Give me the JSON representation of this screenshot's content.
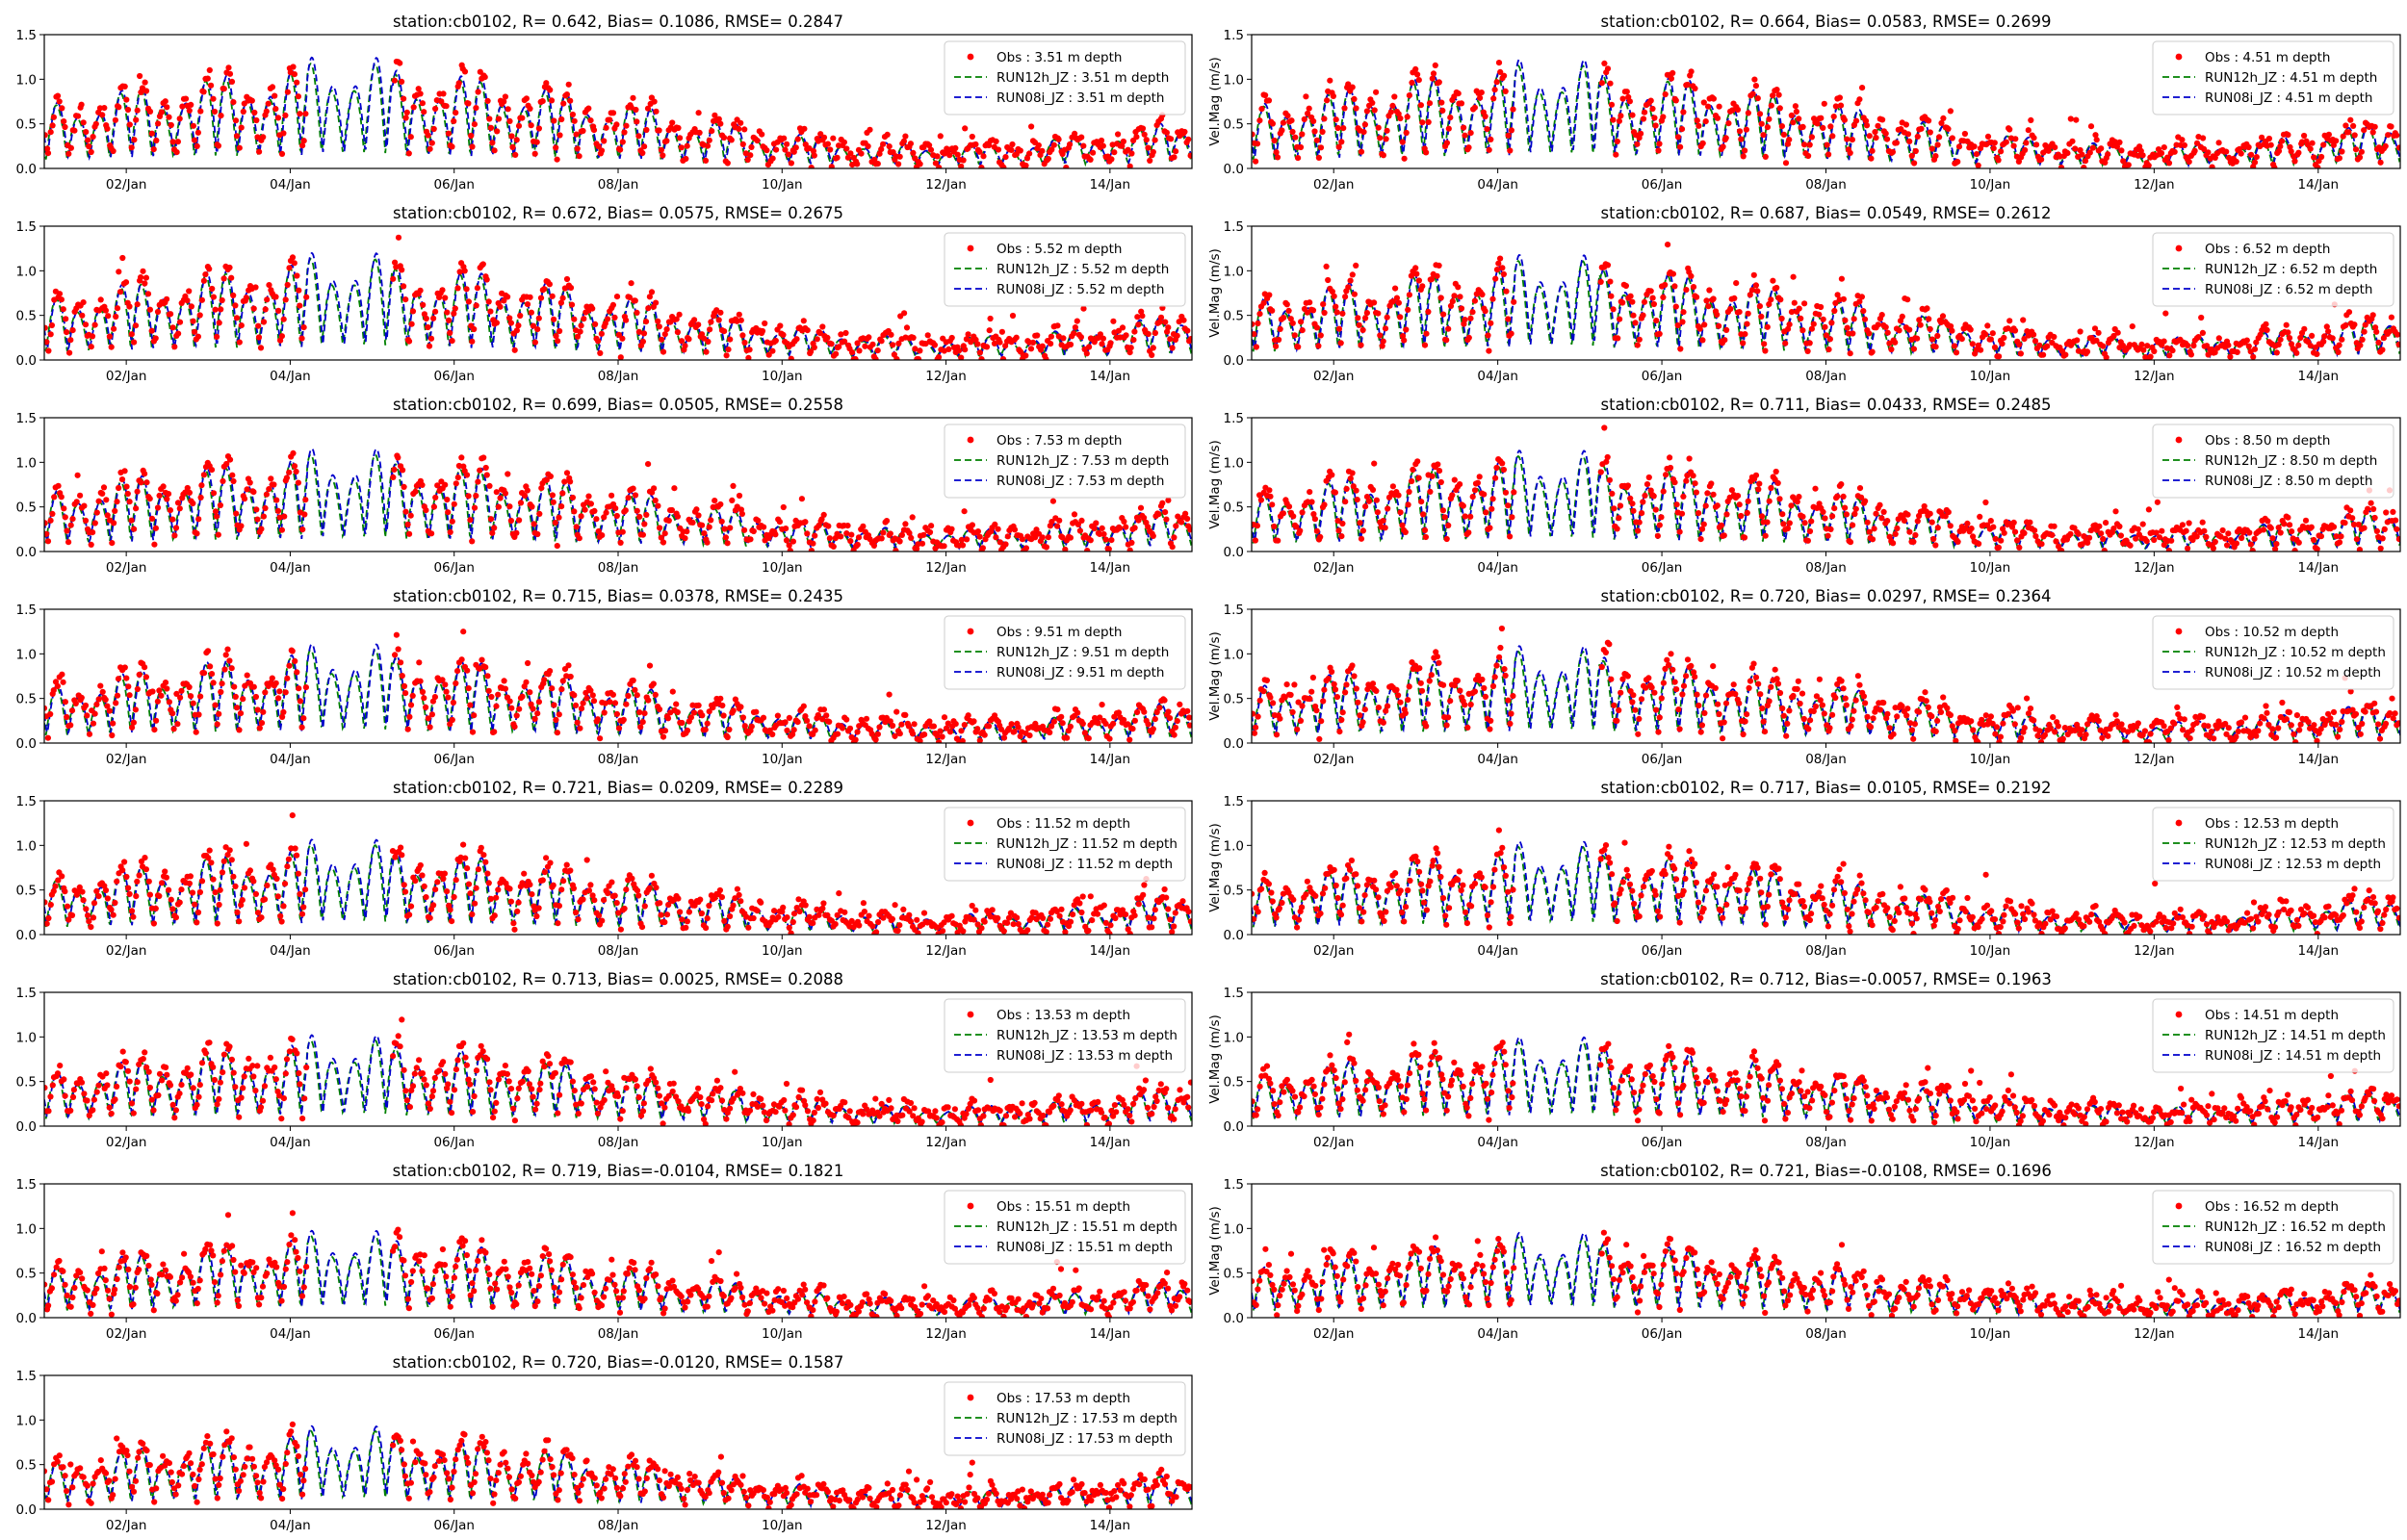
{
  "figure": {
    "x_tick_labels": [
      "02/Jan",
      "04/Jan",
      "06/Jan",
      "08/Jan",
      "10/Jan",
      "12/Jan",
      "14/Jan"
    ],
    "y_tick_labels": [
      "0.0",
      "0.5",
      "1.0",
      "1.5"
    ],
    "ylabel_right": "Vel.Mag (m/s)",
    "colors": {
      "obs": "#ff0000",
      "run12h": "#008000",
      "run08i": "#0000cc",
      "axis": "#000000"
    }
  },
  "chart_data": [
    {
      "type": "line",
      "title": "station:cb0102, R= 0.642, Bias= 0.1086, RMSE= 0.2847",
      "ylabel": "",
      "xlim": [
        1.0,
        15.0
      ],
      "ylim": [
        0,
        1.5
      ],
      "legend": "top-right",
      "series": [
        {
          "name": "Obs : 3.51 m depth",
          "style": "points"
        },
        {
          "name": "RUN12h_JZ : 3.51 m depth",
          "style": "dashed"
        },
        {
          "name": "RUN08i_JZ : 3.51 m depth",
          "style": "dashed"
        }
      ]
    },
    {
      "type": "line",
      "title": "station:cb0102, R= 0.664, Bias= 0.0583, RMSE= 0.2699",
      "ylabel": "Vel.Mag (m/s)",
      "xlim": [
        1.0,
        15.0
      ],
      "ylim": [
        0,
        1.5
      ],
      "legend": "top-right",
      "series": [
        {
          "name": "Obs : 4.51 m depth",
          "style": "points"
        },
        {
          "name": "RUN12h_JZ : 4.51 m depth",
          "style": "dashed"
        },
        {
          "name": "RUN08i_JZ : 4.51 m depth",
          "style": "dashed"
        }
      ]
    },
    {
      "type": "line",
      "title": "station:cb0102, R= 0.672, Bias= 0.0575, RMSE= 0.2675",
      "ylabel": "",
      "xlim": [
        1.0,
        15.0
      ],
      "ylim": [
        0,
        1.5
      ],
      "legend": "top-right",
      "series": [
        {
          "name": "Obs : 5.52 m depth",
          "style": "points"
        },
        {
          "name": "RUN12h_JZ : 5.52 m depth",
          "style": "dashed"
        },
        {
          "name": "RUN08i_JZ : 5.52 m depth",
          "style": "dashed"
        }
      ]
    },
    {
      "type": "line",
      "title": "station:cb0102, R= 0.687, Bias= 0.0549, RMSE= 0.2612",
      "ylabel": "Vel.Mag (m/s)",
      "xlim": [
        1.0,
        15.0
      ],
      "ylim": [
        0,
        1.5
      ],
      "legend": "top-right",
      "series": [
        {
          "name": "Obs : 6.52 m depth",
          "style": "points"
        },
        {
          "name": "RUN12h_JZ : 6.52 m depth",
          "style": "dashed"
        },
        {
          "name": "RUN08i_JZ : 6.52 m depth",
          "style": "dashed"
        }
      ]
    },
    {
      "type": "line",
      "title": "station:cb0102, R= 0.699, Bias= 0.0505, RMSE= 0.2558",
      "ylabel": "",
      "xlim": [
        1.0,
        15.0
      ],
      "ylim": [
        0,
        1.5
      ],
      "legend": "top-right",
      "series": [
        {
          "name": "Obs : 7.53 m depth",
          "style": "points"
        },
        {
          "name": "RUN12h_JZ : 7.53 m depth",
          "style": "dashed"
        },
        {
          "name": "RUN08i_JZ : 7.53 m depth",
          "style": "dashed"
        }
      ]
    },
    {
      "type": "line",
      "title": "station:cb0102, R= 0.711, Bias= 0.0433, RMSE= 0.2485",
      "ylabel": "Vel.Mag (m/s)",
      "xlim": [
        1.0,
        15.0
      ],
      "ylim": [
        0,
        1.5
      ],
      "legend": "top-right",
      "series": [
        {
          "name": "Obs : 8.50 m depth",
          "style": "points"
        },
        {
          "name": "RUN12h_JZ : 8.50 m depth",
          "style": "dashed"
        },
        {
          "name": "RUN08i_JZ : 8.50 m depth",
          "style": "dashed"
        }
      ]
    },
    {
      "type": "line",
      "title": "station:cb0102, R= 0.715, Bias= 0.0378, RMSE= 0.2435",
      "ylabel": "",
      "xlim": [
        1.0,
        15.0
      ],
      "ylim": [
        0,
        1.5
      ],
      "legend": "top-right",
      "series": [
        {
          "name": "Obs : 9.51 m depth",
          "style": "points"
        },
        {
          "name": "RUN12h_JZ : 9.51 m depth",
          "style": "dashed"
        },
        {
          "name": "RUN08i_JZ : 9.51 m depth",
          "style": "dashed"
        }
      ]
    },
    {
      "type": "line",
      "title": "station:cb0102, R= 0.720, Bias= 0.0297, RMSE= 0.2364",
      "ylabel": "Vel.Mag (m/s)",
      "xlim": [
        1.0,
        15.0
      ],
      "ylim": [
        0,
        1.5
      ],
      "legend": "top-right",
      "series": [
        {
          "name": "Obs : 10.52 m depth",
          "style": "points"
        },
        {
          "name": "RUN12h_JZ : 10.52 m depth",
          "style": "dashed"
        },
        {
          "name": "RUN08i_JZ : 10.52 m depth",
          "style": "dashed"
        }
      ]
    },
    {
      "type": "line",
      "title": "station:cb0102, R= 0.721, Bias= 0.0209, RMSE= 0.2289",
      "ylabel": "",
      "xlim": [
        1.0,
        15.0
      ],
      "ylim": [
        0,
        1.5
      ],
      "legend": "top-right",
      "series": [
        {
          "name": "Obs : 11.52 m depth",
          "style": "points"
        },
        {
          "name": "RUN12h_JZ : 11.52 m depth",
          "style": "dashed"
        },
        {
          "name": "RUN08i_JZ : 11.52 m depth",
          "style": "dashed"
        }
      ]
    },
    {
      "type": "line",
      "title": "station:cb0102, R= 0.717, Bias= 0.0105, RMSE= 0.2192",
      "ylabel": "Vel.Mag (m/s)",
      "xlim": [
        1.0,
        15.0
      ],
      "ylim": [
        0,
        1.5
      ],
      "legend": "top-right",
      "series": [
        {
          "name": "Obs : 12.53 m depth",
          "style": "points"
        },
        {
          "name": "RUN12h_JZ : 12.53 m depth",
          "style": "dashed"
        },
        {
          "name": "RUN08i_JZ : 12.53 m depth",
          "style": "dashed"
        }
      ]
    },
    {
      "type": "line",
      "title": "station:cb0102, R= 0.713, Bias= 0.0025, RMSE= 0.2088",
      "ylabel": "",
      "xlim": [
        1.0,
        15.0
      ],
      "ylim": [
        0,
        1.5
      ],
      "legend": "top-right",
      "series": [
        {
          "name": "Obs : 13.53 m depth",
          "style": "points"
        },
        {
          "name": "RUN12h_JZ : 13.53 m depth",
          "style": "dashed"
        },
        {
          "name": "RUN08i_JZ : 13.53 m depth",
          "style": "dashed"
        }
      ]
    },
    {
      "type": "line",
      "title": "station:cb0102, R= 0.712, Bias=-0.0057, RMSE= 0.1963",
      "ylabel": "Vel.Mag (m/s)",
      "xlim": [
        1.0,
        15.0
      ],
      "ylim": [
        0,
        1.5
      ],
      "legend": "top-right",
      "series": [
        {
          "name": "Obs : 14.51 m depth",
          "style": "points"
        },
        {
          "name": "RUN12h_JZ : 14.51 m depth",
          "style": "dashed"
        },
        {
          "name": "RUN08i_JZ : 14.51 m depth",
          "style": "dashed"
        }
      ]
    },
    {
      "type": "line",
      "title": "station:cb0102, R= 0.719, Bias=-0.0104, RMSE= 0.1821",
      "ylabel": "",
      "xlim": [
        1.0,
        15.0
      ],
      "ylim": [
        0,
        1.5
      ],
      "legend": "top-right",
      "series": [
        {
          "name": "Obs : 15.51 m depth",
          "style": "points"
        },
        {
          "name": "RUN12h_JZ : 15.51 m depth",
          "style": "dashed"
        },
        {
          "name": "RUN08i_JZ : 15.51 m depth",
          "style": "dashed"
        }
      ]
    },
    {
      "type": "line",
      "title": "station:cb0102, R= 0.721, Bias=-0.0108, RMSE= 0.1696",
      "ylabel": "Vel.Mag (m/s)",
      "xlim": [
        1.0,
        15.0
      ],
      "ylim": [
        0,
        1.5
      ],
      "legend": "top-right",
      "series": [
        {
          "name": "Obs : 16.52 m depth",
          "style": "points"
        },
        {
          "name": "RUN12h_JZ : 16.52 m depth",
          "style": "dashed"
        },
        {
          "name": "RUN08i_JZ : 16.52 m depth",
          "style": "dashed"
        }
      ]
    },
    {
      "type": "line",
      "title": "station:cb0102, R= 0.720, Bias=-0.0120, RMSE= 0.1587",
      "ylabel": "",
      "xlim": [
        1.0,
        15.0
      ],
      "ylim": [
        0,
        1.5
      ],
      "legend": "top-right",
      "series": [
        {
          "name": "Obs : 17.53 m depth",
          "style": "points"
        },
        {
          "name": "RUN12h_JZ : 17.53 m depth",
          "style": "dashed"
        },
        {
          "name": "RUN08i_JZ : 17.53 m depth",
          "style": "dashed"
        }
      ]
    }
  ]
}
